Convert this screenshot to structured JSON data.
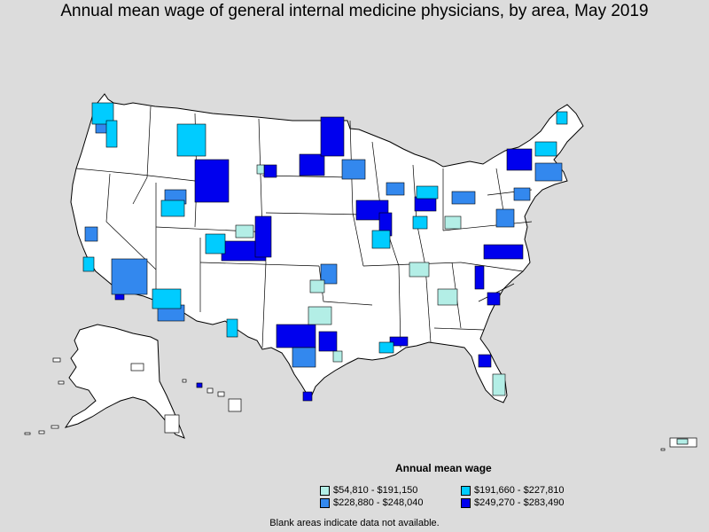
{
  "title": "Annual mean wage of general internal medicine physicians, by area, May 2019",
  "legend": {
    "title": "Annual mean wage",
    "items": [
      {
        "label": "$54,810 - $191,150",
        "color": "#b3eee6"
      },
      {
        "label": "$191,660 - $227,810",
        "color": "#00ccff"
      },
      {
        "label": "$228,880 - $248,040",
        "color": "#3388ee"
      },
      {
        "label": "$249,270 - $283,490",
        "color": "#0000ee"
      }
    ]
  },
  "footnote": "Blank areas indicate data not available.",
  "colors": {
    "background": "#dcdcdc",
    "land": "#ffffff",
    "border": "#000000"
  }
}
